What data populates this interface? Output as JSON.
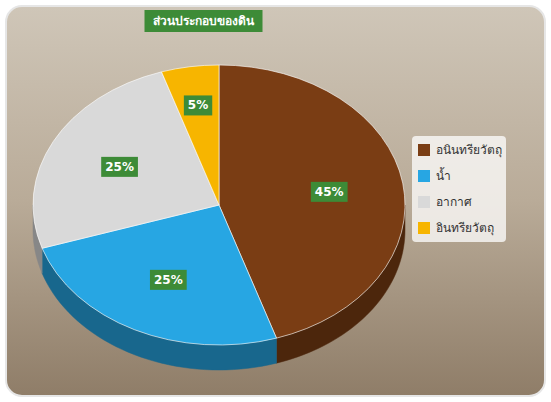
{
  "chart_data": {
    "type": "pie",
    "title": "ส่วนประกอบของดิน",
    "categories": [
      "อนินทรียวัตถุ",
      "น้ำ",
      "อากาศ",
      "อินทรียวัตถุ"
    ],
    "values": [
      45,
      25,
      25,
      5
    ],
    "value_labels": [
      "45%",
      "25%",
      "25%",
      "5%"
    ],
    "colors": [
      "#7a3d14",
      "#27a6e3",
      "#d9d9d9",
      "#f7b500"
    ],
    "data_labels": true,
    "legend": "right"
  }
}
